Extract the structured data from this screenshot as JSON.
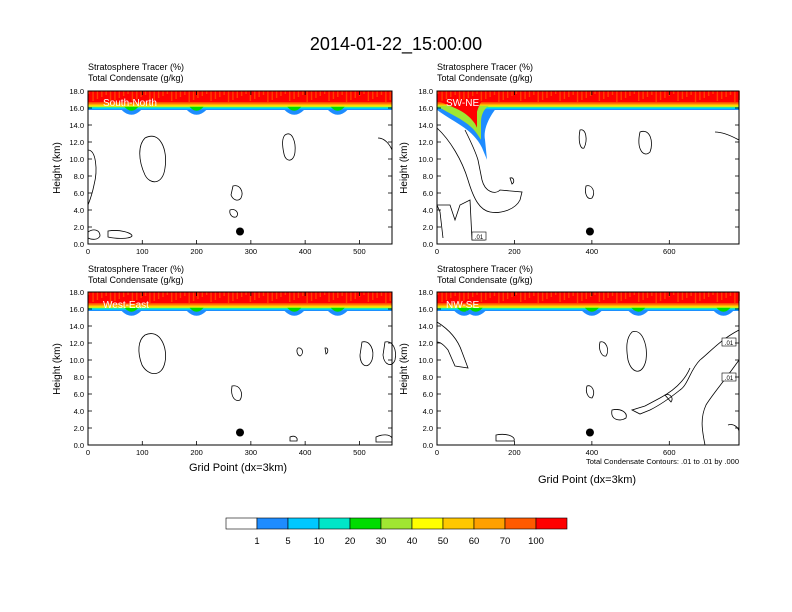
{
  "title": "2014-01-22_15:00:00",
  "panel_header": {
    "line1": "Stratosphere Tracer   (%)",
    "line2": "Total Condensate   (g/kg)"
  },
  "ylabel": "Height (km)",
  "xlabel": "Grid Point (dx=3km)",
  "contour_note": "Total Condensate Contours: .01 to .01 by .000",
  "contour_label": ".01",
  "colors": {
    "colorbar": [
      "#ffffff",
      "#1e8cff",
      "#00c8ff",
      "#00e6c8",
      "#00dc00",
      "#a0e632",
      "#ffff00",
      "#ffc800",
      "#ffa000",
      "#ff5a00",
      "#ff0000"
    ],
    "marker": "#000000"
  },
  "colorbar_labels": [
    "1",
    "5",
    "10",
    "20",
    "30",
    "40",
    "50",
    "60",
    "70",
    "100"
  ],
  "chart_data": [
    {
      "type": "heatmap",
      "label": "South-North",
      "title": "Stratosphere Tracer (%)",
      "ylim": [
        0,
        18
      ],
      "xlim": [
        0,
        560
      ],
      "yticks": [
        "0.0",
        "2.0",
        "4.0",
        "6.0",
        "8.0",
        "10.0",
        "12.0",
        "14.0",
        "16.0",
        "18.0"
      ],
      "xticks": [
        0,
        100,
        200,
        300,
        400,
        500
      ],
      "tracer_base_km": 15.8,
      "marker": {
        "x": 280,
        "y": 1.0
      }
    },
    {
      "type": "heatmap",
      "label": "SW-NE",
      "title": "Stratosphere Tracer (%)",
      "ylim": [
        0,
        18
      ],
      "xlim": [
        0,
        780
      ],
      "yticks": [
        "0.0",
        "2.0",
        "4.0",
        "6.0",
        "8.0",
        "10.0",
        "12.0",
        "14.0",
        "16.0",
        "18.0"
      ],
      "xticks": [
        0,
        200,
        400,
        600
      ],
      "tracer_base_km": 15.8,
      "marker": {
        "x": 395,
        "y": 1.0
      }
    },
    {
      "type": "heatmap",
      "label": "West-East",
      "title": "Stratosphere Tracer (%)",
      "ylim": [
        0,
        18
      ],
      "xlim": [
        0,
        560
      ],
      "yticks": [
        "0.0",
        "2.0",
        "4.0",
        "6.0",
        "8.0",
        "10.0",
        "12.0",
        "14.0",
        "16.0",
        "18.0"
      ],
      "xticks": [
        0,
        100,
        200,
        300,
        400,
        500
      ],
      "tracer_base_km": 15.8,
      "marker": {
        "x": 280,
        "y": 1.0
      }
    },
    {
      "type": "heatmap",
      "label": "NW-SE",
      "title": "Stratosphere Tracer (%)",
      "ylim": [
        0,
        18
      ],
      "xlim": [
        0,
        780
      ],
      "yticks": [
        "0.0",
        "2.0",
        "4.0",
        "6.0",
        "8.0",
        "10.0",
        "12.0",
        "14.0",
        "16.0",
        "18.0"
      ],
      "xticks": [
        0,
        200,
        400,
        600
      ],
      "tracer_base_km": 15.8,
      "marker": {
        "x": 395,
        "y": 1.0
      }
    }
  ]
}
